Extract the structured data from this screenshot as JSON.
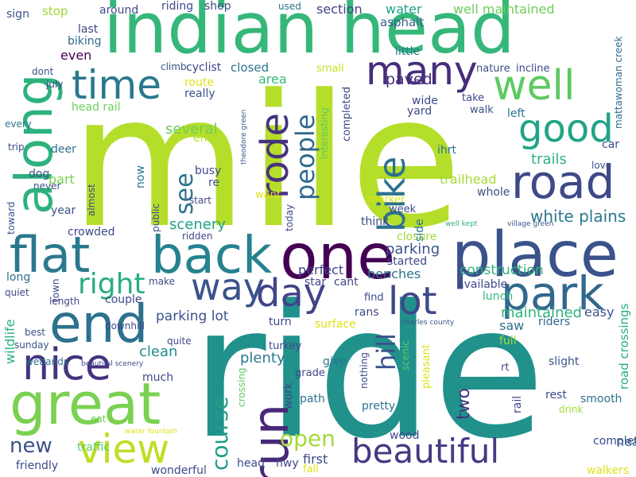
{
  "cloud": {
    "words": [
      {
        "text": "mile",
        "color": "#b5de2b"
      },
      {
        "text": "ride",
        "color": "#21918c"
      },
      {
        "text": "indian head",
        "color": "#35b779"
      },
      {
        "text": "one",
        "color": "#440154"
      },
      {
        "text": "place",
        "color": "#3b528b"
      },
      {
        "text": "back",
        "color": "#26828e"
      },
      {
        "text": "end",
        "color": "#2c728e"
      },
      {
        "text": "great",
        "color": "#7ad151"
      },
      {
        "text": "road",
        "color": "#3e4989"
      },
      {
        "text": "flat",
        "color": "#2a788e"
      },
      {
        "text": "along",
        "color": "#2db27d"
      },
      {
        "text": "run",
        "color": "#482878"
      },
      {
        "text": "beautiful",
        "color": "#443983"
      },
      {
        "text": "nice",
        "color": "#46327e"
      },
      {
        "text": "view",
        "color": "#bddf26"
      },
      {
        "text": "park",
        "color": "#31688e"
      },
      {
        "text": "well",
        "color": "#5ec962"
      },
      {
        "text": "many",
        "color": "#472d7b"
      },
      {
        "text": "time",
        "color": "#2a788e"
      },
      {
        "text": "good",
        "color": "#20a486"
      },
      {
        "text": "day",
        "color": "#414487"
      },
      {
        "text": "lot",
        "color": "#3e4989"
      },
      {
        "text": "rode",
        "color": "#46327e"
      },
      {
        "text": "bike",
        "color": "#2c728e"
      },
      {
        "text": "way",
        "color": "#3b528b"
      },
      {
        "text": "right",
        "color": "#28ae80"
      },
      {
        "text": "people",
        "color": "#31688e"
      },
      {
        "text": "course",
        "color": "#1f9e89"
      },
      {
        "text": "open",
        "color": "#a0da39"
      },
      {
        "text": "new",
        "color": "#3b528b"
      },
      {
        "text": "white plains",
        "color": "#2a788e"
      },
      {
        "text": "hill",
        "color": "#3b528b"
      },
      {
        "text": "see",
        "color": "#2c728e"
      },
      {
        "text": "several",
        "color": "#6ccd5a"
      },
      {
        "text": "scenery",
        "color": "#1fa187"
      },
      {
        "text": "parking lot",
        "color": "#3b528b"
      },
      {
        "text": "clean",
        "color": "#228c8d"
      },
      {
        "text": "plenty",
        "color": "#2a788e"
      },
      {
        "text": "two",
        "color": "#46327e"
      },
      {
        "text": "parking",
        "color": "#3b528b"
      },
      {
        "text": "benches",
        "color": "#2c728e"
      },
      {
        "text": "perfect",
        "color": "#414487"
      },
      {
        "text": "construction",
        "color": "#2db27d"
      },
      {
        "text": "maintained",
        "color": "#2db27d"
      },
      {
        "text": "saw",
        "color": "#2c728e"
      },
      {
        "text": "easy",
        "color": "#3b528b"
      },
      {
        "text": "riders",
        "color": "#31688e"
      },
      {
        "text": "road crossings",
        "color": "#27ad81"
      },
      {
        "text": "trails",
        "color": "#2db27d"
      },
      {
        "text": "trailhead",
        "color": "#a5db36"
      },
      {
        "text": "whole",
        "color": "#3b528b"
      },
      {
        "text": "paved",
        "color": "#472d7b"
      },
      {
        "text": "section",
        "color": "#414487"
      },
      {
        "text": "water",
        "color": "#1fa187"
      },
      {
        "text": "well maintained",
        "color": "#6ccd5a"
      },
      {
        "text": "asphalt",
        "color": "#355f8d"
      },
      {
        "text": "little",
        "color": "#2a788e"
      },
      {
        "text": "riding",
        "color": "#3e4989"
      },
      {
        "text": "shop",
        "color": "#3e4989"
      },
      {
        "text": "used",
        "color": "#2c728e"
      },
      {
        "text": "stop",
        "color": "#a0da39"
      },
      {
        "text": "around",
        "color": "#3e4989"
      },
      {
        "text": "sign",
        "color": "#3b528b"
      },
      {
        "text": "last",
        "color": "#414487"
      },
      {
        "text": "biking",
        "color": "#31688e"
      },
      {
        "text": "even",
        "color": "#440154"
      },
      {
        "text": "closed",
        "color": "#2c728e"
      },
      {
        "text": "cyclist",
        "color": "#3e4989"
      },
      {
        "text": "climb",
        "color": "#3b528b"
      },
      {
        "text": "area",
        "color": "#35b779"
      },
      {
        "text": "small",
        "color": "#c8e020"
      },
      {
        "text": "nature",
        "color": "#3b528b"
      },
      {
        "text": "incline",
        "color": "#3e4989"
      },
      {
        "text": "mattawoman creek",
        "color": "#31688e"
      },
      {
        "text": "route",
        "color": "#dde318"
      },
      {
        "text": "really",
        "color": "#3b528b"
      },
      {
        "text": "head rail",
        "color": "#6ccd5a"
      },
      {
        "text": "dont",
        "color": "#3b528b"
      },
      {
        "text": "july",
        "color": "#414487"
      },
      {
        "text": "every",
        "color": "#2a788e"
      },
      {
        "text": "trip",
        "color": "#3e4989"
      },
      {
        "text": "dog",
        "color": "#3b528b"
      },
      {
        "text": "deer",
        "color": "#2c728e"
      },
      {
        "text": "part",
        "color": "#7ad151"
      },
      {
        "text": "never",
        "color": "#3b528b"
      },
      {
        "text": "toward",
        "color": "#3b528b"
      },
      {
        "text": "almost",
        "color": "#3e4989"
      },
      {
        "text": "year",
        "color": "#3b528b"
      },
      {
        "text": "now",
        "color": "#2c728e"
      },
      {
        "text": "busy",
        "color": "#3e4989"
      },
      {
        "text": "re",
        "color": "#3b528b"
      },
      {
        "text": "start",
        "color": "#3e4989"
      },
      {
        "text": "entire",
        "color": "#b5de2b"
      },
      {
        "text": "want",
        "color": "#dde318"
      },
      {
        "text": "theodore green",
        "color": "#3b528b"
      },
      {
        "text": "interesting",
        "color": "#5ec962"
      },
      {
        "text": "completed",
        "color": "#3e4989"
      },
      {
        "text": "today",
        "color": "#3e4989"
      },
      {
        "text": "wide",
        "color": "#3e4989"
      },
      {
        "text": "yard",
        "color": "#3e4989"
      },
      {
        "text": "walk",
        "color": "#3b528b"
      },
      {
        "text": "take",
        "color": "#3e4989"
      },
      {
        "text": "left",
        "color": "#2c728e"
      },
      {
        "text": "ihrt",
        "color": "#2c728e"
      },
      {
        "text": "car",
        "color": "#3e4989"
      },
      {
        "text": "love",
        "color": "#3b528b"
      },
      {
        "text": "marker",
        "color": "#dde318"
      },
      {
        "text": "think",
        "color": "#3e4989"
      },
      {
        "text": "week",
        "color": "#3e4989"
      },
      {
        "text": "closure",
        "color": "#a0da39"
      },
      {
        "text": "side",
        "color": "#2c728e"
      },
      {
        "text": "started",
        "color": "#3e4989"
      },
      {
        "text": "well kept",
        "color": "#2db27d"
      },
      {
        "text": "village green",
        "color": "#3b528b"
      },
      {
        "text": "public",
        "color": "#3e4989"
      },
      {
        "text": "crowded",
        "color": "#3e4989"
      },
      {
        "text": "ridden",
        "color": "#3e4989"
      },
      {
        "text": "long",
        "color": "#2c728e"
      },
      {
        "text": "town",
        "color": "#3e4989"
      },
      {
        "text": "make",
        "color": "#3e4989"
      },
      {
        "text": "quiet",
        "color": "#3e4989"
      },
      {
        "text": "length",
        "color": "#3e4989"
      },
      {
        "text": "couple",
        "color": "#3e4989"
      },
      {
        "text": "wildlife",
        "color": "#2db27d"
      },
      {
        "text": "best",
        "color": "#3b528b"
      },
      {
        "text": "sunday",
        "color": "#3b528b"
      },
      {
        "text": "downhill",
        "color": "#3e4989"
      },
      {
        "text": "quite",
        "color": "#3e4989"
      },
      {
        "text": "turkey",
        "color": "#3e4989"
      },
      {
        "text": "turn",
        "color": "#3e4989"
      },
      {
        "text": "surface",
        "color": "#dde318"
      },
      {
        "text": "rans",
        "color": "#3e4989"
      },
      {
        "text": "find",
        "color": "#3e4989"
      },
      {
        "text": "star",
        "color": "#3e4989"
      },
      {
        "text": "cant",
        "color": "#3e4989"
      },
      {
        "text": "lunch",
        "color": "#35b779"
      },
      {
        "text": "available",
        "color": "#3e4989"
      },
      {
        "text": "charles county",
        "color": "#3b528b"
      },
      {
        "text": "full",
        "color": "#a0da39"
      },
      {
        "text": "rt",
        "color": "#3e4989"
      },
      {
        "text": "slight",
        "color": "#3b528b"
      },
      {
        "text": "rest",
        "color": "#3e4989"
      },
      {
        "text": "smooth",
        "color": "#2c728e"
      },
      {
        "text": "drink",
        "color": "#a5db36"
      },
      {
        "text": "walkers",
        "color": "#dde318"
      },
      {
        "text": "near",
        "color": "#2c728e"
      },
      {
        "text": "complete",
        "color": "#3e4989"
      },
      {
        "text": "rail",
        "color": "#3e4989"
      },
      {
        "text": "scenic",
        "color": "#5ec962"
      },
      {
        "text": "pleasant",
        "color": "#dde318"
      },
      {
        "text": "give",
        "color": "#2c728e"
      },
      {
        "text": "grade",
        "color": "#3e4989"
      },
      {
        "text": "nothing",
        "color": "#3e4989"
      },
      {
        "text": "crossing",
        "color": "#5ec962"
      },
      {
        "text": "work",
        "color": "#3e4989"
      },
      {
        "text": "path",
        "color": "#2c728e"
      },
      {
        "text": "pretty",
        "color": "#2c728e"
      },
      {
        "text": "wood",
        "color": "#3e4989"
      },
      {
        "text": "first",
        "color": "#3e4989"
      },
      {
        "text": "fall",
        "color": "#dde318"
      },
      {
        "text": "head",
        "color": "#3e4989"
      },
      {
        "text": "hwy",
        "color": "#3e4989"
      },
      {
        "text": "much",
        "color": "#3e4989"
      },
      {
        "text": "wetlands",
        "color": "#2c728e"
      },
      {
        "text": "beautiful scenery",
        "color": "#3e4989"
      },
      {
        "text": "eat",
        "color": "#6ccd5a"
      },
      {
        "text": "water fountain",
        "color": "#dde318"
      },
      {
        "text": "friendly",
        "color": "#3e4989"
      },
      {
        "text": "traffic",
        "color": "#5ec962"
      },
      {
        "text": "wonderful",
        "color": "#3e4989"
      }
    ]
  }
}
